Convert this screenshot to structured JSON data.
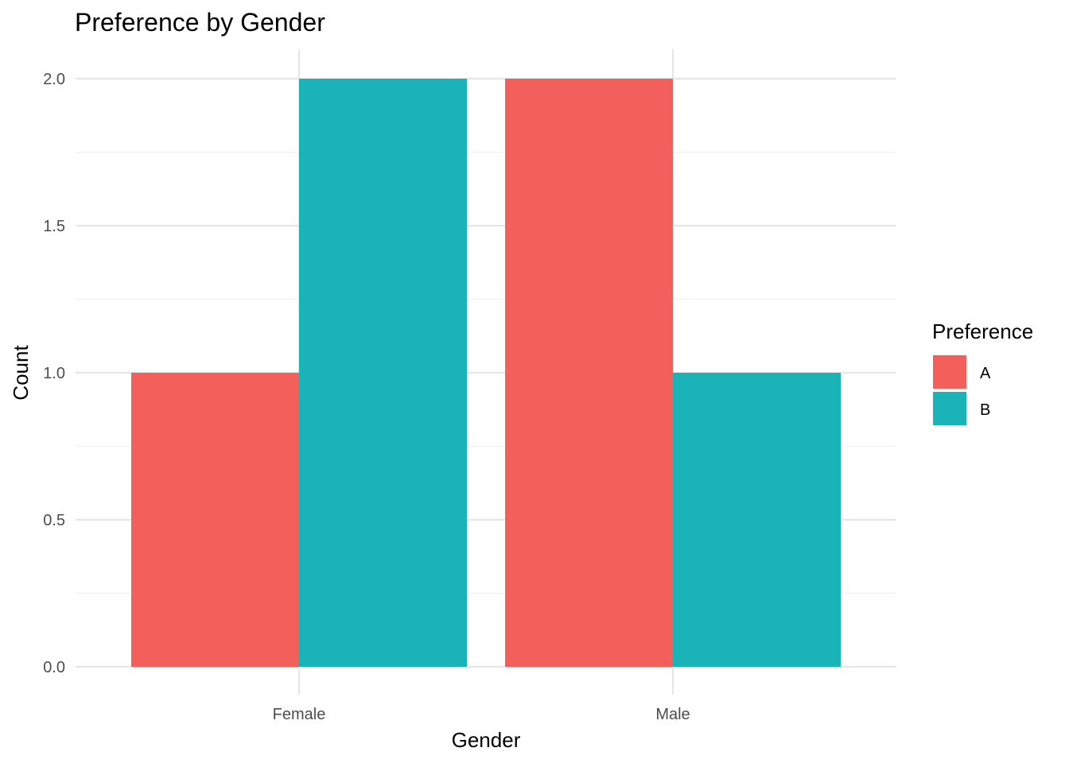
{
  "chart_data": {
    "type": "bar",
    "title": "Preference by Gender",
    "xlabel": "Gender",
    "ylabel": "Count",
    "categories": [
      "Female",
      "Male"
    ],
    "series": [
      {
        "name": "A",
        "color": "#F35F5B",
        "values": [
          1,
          2
        ]
      },
      {
        "name": "B",
        "color": "#19B3B8",
        "values": [
          2,
          1
        ]
      }
    ],
    "ylim": [
      0,
      2
    ],
    "yticks": [
      "0.0",
      "0.5",
      "1.0",
      "1.5",
      "2.0"
    ],
    "ytick_values": [
      0,
      0.5,
      1,
      1.5,
      2
    ],
    "grid": true,
    "legend": {
      "title": "Preference",
      "position": "right"
    }
  }
}
